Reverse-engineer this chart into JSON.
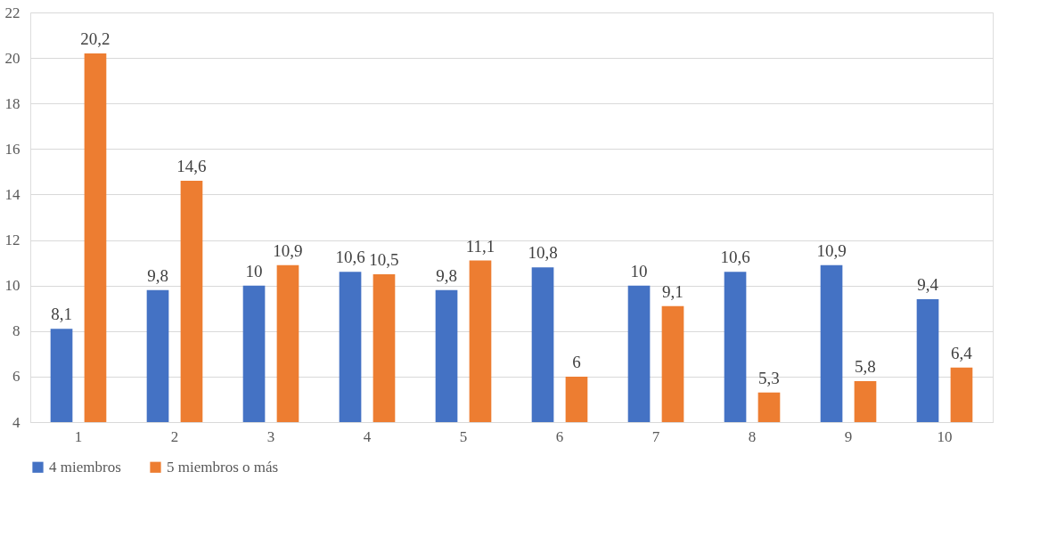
{
  "chart_data": {
    "type": "bar",
    "categories": [
      "1",
      "2",
      "3",
      "4",
      "5",
      "6",
      "7",
      "8",
      "9",
      "10"
    ],
    "series": [
      {
        "name": "4 miembros",
        "color": "#4472c4",
        "values": [
          8.1,
          9.8,
          10,
          10.6,
          9.8,
          10.8,
          10,
          10.6,
          10.9,
          9.4
        ],
        "value_labels": [
          "8,1",
          "9,8",
          "10",
          "10,6",
          "9,8",
          "10,8",
          "10",
          "10,6",
          "10,9",
          "9,4"
        ]
      },
      {
        "name": "5 miembros o más",
        "color": "#ed7d31",
        "values": [
          20.2,
          14.6,
          10.9,
          10.5,
          11.1,
          6,
          9.1,
          5.3,
          5.8,
          6.4
        ],
        "value_labels": [
          "20,2",
          "14,6",
          "10,9",
          "10,5",
          "11,1",
          "6",
          "9,1",
          "5,3",
          "5,8",
          "6,4"
        ]
      }
    ],
    "ylim": [
      4,
      22
    ],
    "yticks": [
      4,
      6,
      8,
      10,
      12,
      14,
      16,
      18,
      20,
      22
    ],
    "grid": "y",
    "legend": "bottom"
  }
}
